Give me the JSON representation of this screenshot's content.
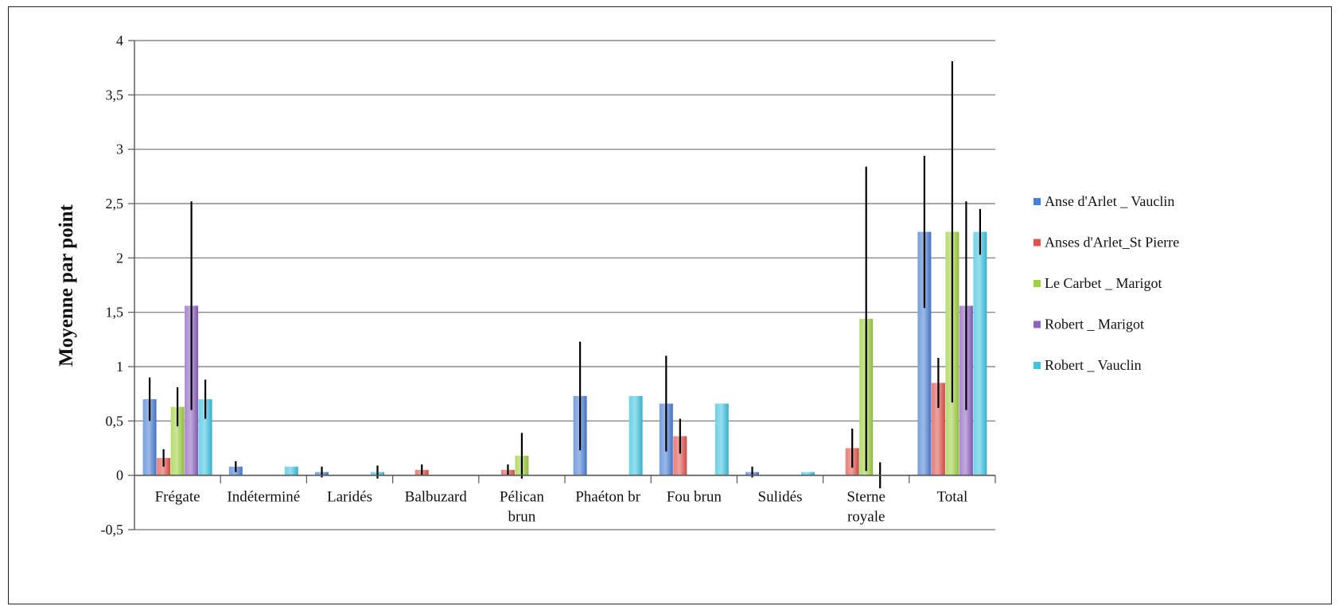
{
  "chart_data": {
    "type": "bar",
    "title": "",
    "xlabel": "",
    "ylabel": "Moyenne par point",
    "ylim": [
      -0.5,
      4
    ],
    "yticks": [
      -0.5,
      0,
      0.5,
      1,
      1.5,
      2,
      2.5,
      3,
      3.5,
      4
    ],
    "ytick_labels": [
      "-0,5",
      "0",
      "0,5",
      "1",
      "1,5",
      "2",
      "2,5",
      "3",
      "3,5",
      "4"
    ],
    "grid": true,
    "legend_position": "right",
    "categories": [
      [
        "Frégate"
      ],
      [
        "Indéterminé"
      ],
      [
        "Laridés"
      ],
      [
        "Balbuzard"
      ],
      [
        "Pélican",
        "brun"
      ],
      [
        "Phaéton br"
      ],
      [
        "Fou brun"
      ],
      [
        "Sulidés"
      ],
      [
        "Sterne",
        "royale"
      ],
      [
        "Total"
      ]
    ],
    "series": [
      {
        "name": "Anse d'Arlet _ Vauclin",
        "color": "#4a7fd6",
        "values": [
          0.7,
          0.08,
          0.03,
          0,
          0,
          0.73,
          0.66,
          0.03,
          0,
          2.24
        ],
        "error": [
          0.2,
          0.05,
          0.05,
          0,
          0,
          0.5,
          0.44,
          0.05,
          0,
          0.7
        ]
      },
      {
        "name": "Anses d'Arlet_St Pierre",
        "color": "#e0544e",
        "values": [
          0.16,
          0,
          0,
          0.05,
          0.05,
          0,
          0.36,
          0,
          0.25,
          0.85
        ],
        "error": [
          0.08,
          0,
          0,
          0.05,
          0.05,
          0,
          0.16,
          0,
          0.18,
          0.23
        ]
      },
      {
        "name": "Le Carbet _ Marigot",
        "color": "#9fd040",
        "values": [
          0.63,
          0,
          0,
          0,
          0.18,
          0,
          0,
          0,
          1.44,
          2.24
        ],
        "error": [
          0.18,
          0,
          0,
          0,
          0.21,
          0,
          0,
          0,
          1.4,
          1.57
        ]
      },
      {
        "name": "Robert _ Marigot",
        "color": "#8e62c0",
        "values": [
          1.56,
          0,
          0,
          0,
          0,
          0,
          0,
          0,
          0,
          1.56
        ],
        "error": [
          0.96,
          0,
          0,
          0,
          0,
          0,
          0,
          0,
          0.12,
          0.96
        ]
      },
      {
        "name": "Robert _ Vauclin",
        "color": "#3ec3e0",
        "values": [
          0.7,
          0.08,
          0.03,
          0,
          0,
          0.73,
          0.66,
          0.03,
          0,
          2.24
        ],
        "error": [
          0.18,
          0,
          0.06,
          0,
          0,
          0,
          0,
          0,
          0,
          0.21
        ]
      }
    ]
  }
}
